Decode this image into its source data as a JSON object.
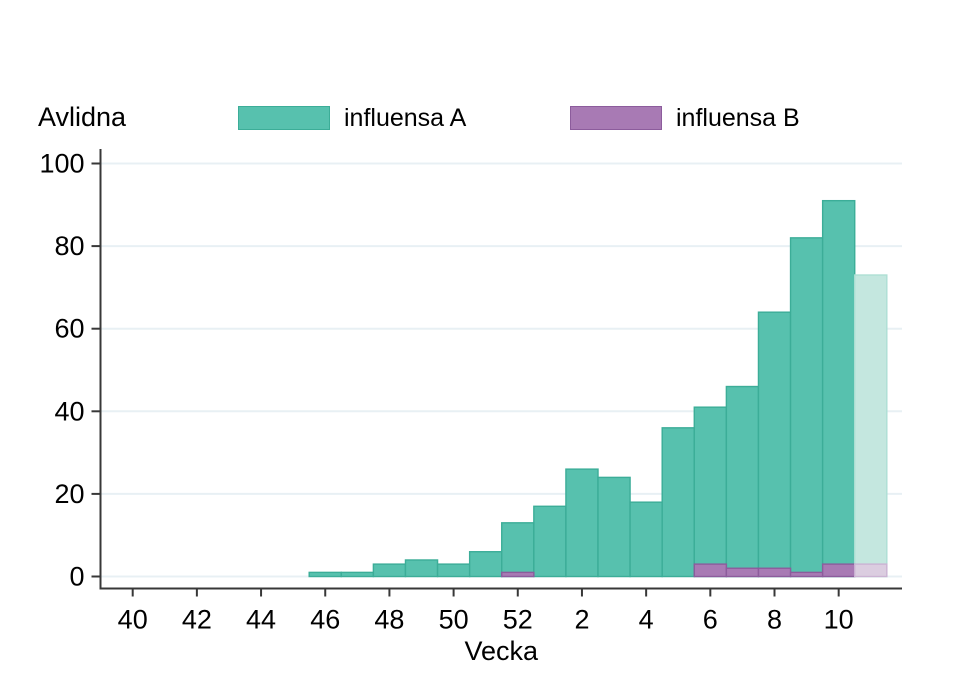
{
  "title": "Avlidna",
  "legend": [
    {
      "label": "influensa A"
    },
    {
      "label": "influensa B"
    }
  ],
  "chart_data": {
    "type": "bar",
    "title": "Avlidna",
    "xlabel": "Vecka",
    "ylabel": "Avlidna",
    "grid": "horizontal",
    "legend_position": "top",
    "ylim": [
      0,
      100
    ],
    "y_ticks": [
      0,
      20,
      40,
      60,
      80,
      100
    ],
    "x_tick_labels": [
      "40",
      "42",
      "44",
      "46",
      "48",
      "50",
      "52",
      "2",
      "4",
      "6",
      "8",
      "10"
    ],
    "categories": [
      "40",
      "41",
      "42",
      "43",
      "44",
      "45",
      "46",
      "47",
      "48",
      "49",
      "50",
      "51",
      "52",
      "1",
      "2",
      "3",
      "4",
      "5",
      "6",
      "7",
      "8",
      "9",
      "10",
      "11"
    ],
    "last_bar_preliminary": true,
    "series": [
      {
        "name": "influensa A",
        "color": "#57C1AE",
        "border": "#3CAD98",
        "color_faded": "#C4E7DF",
        "border_faded": "#AEDFD4",
        "values": [
          null,
          null,
          null,
          null,
          null,
          null,
          1,
          1,
          3,
          4,
          3,
          6,
          13,
          17,
          26,
          24,
          18,
          36,
          41,
          46,
          64,
          82,
          91,
          73
        ]
      },
      {
        "name": "influensa B",
        "color": "#A87AB4",
        "border": "#8C5C9C",
        "color_faded": "#DBCDE0",
        "border_faded": "#CBB3D3",
        "values": [
          null,
          null,
          null,
          null,
          null,
          null,
          null,
          null,
          null,
          null,
          null,
          null,
          1,
          null,
          null,
          null,
          null,
          null,
          3,
          2,
          2,
          1,
          3,
          3
        ]
      }
    ]
  }
}
